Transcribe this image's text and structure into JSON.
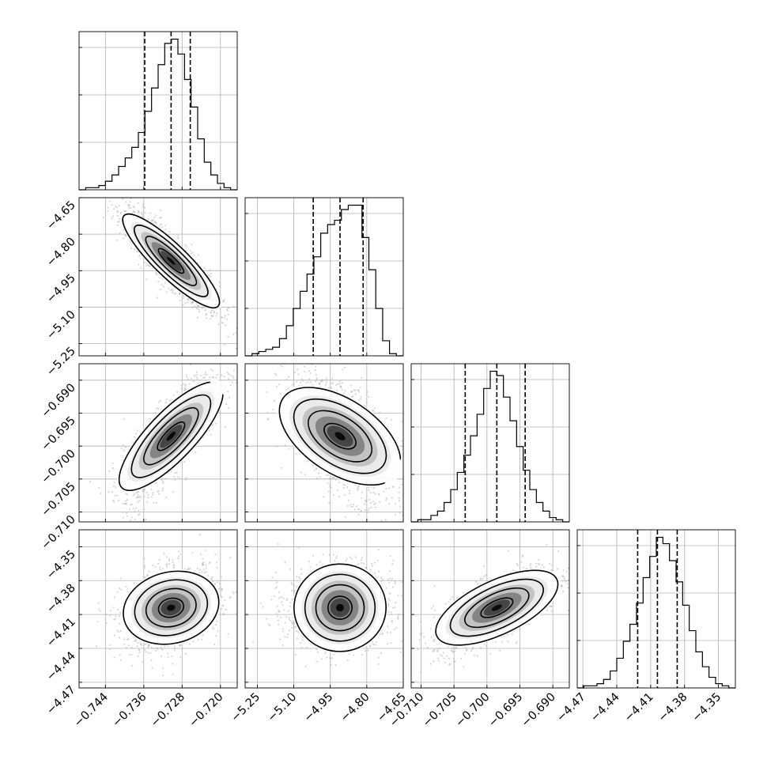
{
  "chart_data": {
    "type": "corner",
    "parameters": [
      {
        "index": 0,
        "range": [
          -0.7495,
          -0.7165
        ],
        "ticks": [
          -0.744,
          -0.736,
          -0.728,
          -0.72
        ],
        "tick_labels": [
          "−0.744",
          "−0.736",
          "−0.728",
          "−0.720"
        ],
        "quantiles": [
          -0.7358,
          -0.7303,
          -0.7263
        ],
        "histogram": [
          1,
          1,
          2,
          4,
          7,
          11,
          15,
          20,
          27,
          37,
          48,
          59,
          69,
          71,
          64,
          52,
          39,
          24,
          13,
          7,
          3,
          1
        ]
      },
      {
        "index": 1,
        "range": [
          -5.3,
          -4.65
        ],
        "ticks": [
          -5.25,
          -5.1,
          -4.95,
          -4.8,
          -4.65
        ],
        "tick_labels": [
          "−5.25",
          "−5.10",
          "−4.95",
          "−4.80",
          "−4.65"
        ],
        "quantiles": [
          -5.02,
          -4.91,
          -4.815
        ],
        "histogram": [
          1,
          2,
          3,
          4,
          8,
          14,
          22,
          30,
          38,
          46,
          57,
          61,
          63,
          68,
          70,
          70,
          55,
          40,
          22,
          7,
          1
        ]
      },
      {
        "index": 2,
        "range": [
          -0.7115,
          -0.6875
        ],
        "ticks": [
          -0.71,
          -0.705,
          -0.7,
          -0.695,
          -0.69
        ],
        "tick_labels": [
          "−0.710",
          "−0.705",
          "−0.700",
          "−0.695",
          "−0.690"
        ],
        "quantiles": [
          -0.7033,
          -0.6985,
          -0.6942
        ],
        "histogram": [
          1,
          1,
          3,
          5,
          9,
          15,
          23,
          31,
          40,
          50,
          62,
          70,
          68,
          58,
          47,
          35,
          24,
          15,
          9,
          5,
          2,
          1
        ]
      },
      {
        "index": 3,
        "range": [
          -4.475,
          -4.335
        ],
        "ticks": [
          -4.47,
          -4.44,
          -4.41,
          -4.38,
          -4.35
        ],
        "tick_labels": [
          "−4.47",
          "−4.44",
          "−4.41",
          "−4.38",
          "−4.35"
        ],
        "quantiles": [
          -4.4215,
          -4.404,
          -4.3865
        ],
        "histogram": [
          1,
          1,
          2,
          4,
          8,
          14,
          22,
          30,
          40,
          52,
          62,
          71,
          68,
          60,
          50,
          39,
          27,
          17,
          10,
          5,
          2,
          1
        ]
      }
    ],
    "row_tick_labels": {
      "1": [
        "−4.65",
        "−4.80",
        "−4.95",
        "−5.10",
        "−5.25"
      ],
      "2": [
        "−0.690",
        "−0.695",
        "−0.700",
        "−0.705",
        "−0.710"
      ],
      "3": [
        "−4.35",
        "−4.38",
        "−4.41",
        "−4.44",
        "−4.47"
      ]
    },
    "correlations": {
      "1-0": -0.88,
      "2-0": 0.8,
      "2-1": -0.55,
      "3-0": 0.3,
      "3-1": 0.05,
      "3-2": 0.72
    },
    "contour_levels_sigma": [
      0.5,
      1.0,
      1.5,
      2.0
    ],
    "grid": true,
    "scatter_color": "#b4b4b4",
    "line_color": "#000000"
  }
}
